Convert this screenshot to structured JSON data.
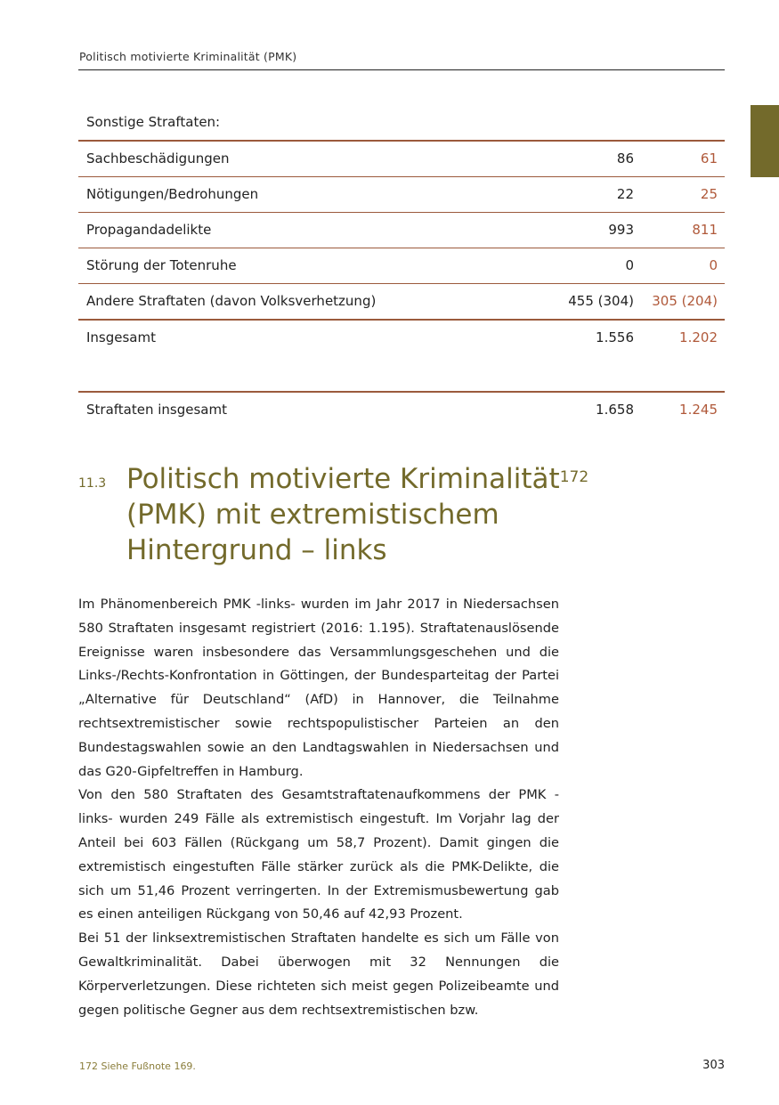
{
  "running_header": "Politisch motivierte Kriminalität (PMK)",
  "table": {
    "section_label": "Sonstige Straftaten:",
    "rows": [
      {
        "label": "Sachbeschädigungen",
        "v2016": "86",
        "v2017": "61"
      },
      {
        "label": "Nötigungen/Bedrohungen",
        "v2016": "22",
        "v2017": "25"
      },
      {
        "label": "Propagandadelikte",
        "v2016": "993",
        "v2017": "811"
      },
      {
        "label": "Störung der Totenruhe",
        "v2016": "0",
        "v2017": "0"
      },
      {
        "label": "Andere Straftaten (davon Volksverhetzung)",
        "v2016": "455 (304)",
        "v2017": "305 (204)"
      }
    ],
    "subtotal": {
      "label": "Insgesamt",
      "v2016": "1.556",
      "v2017": "1.202"
    },
    "total": {
      "label": "Straftaten insgesamt",
      "v2016": "1.658",
      "v2017": "1.245"
    }
  },
  "colors": {
    "accent_olive": "#736a2b",
    "accent_red": "#b0593a",
    "rule": "#9b5a3c"
  },
  "section": {
    "number": "11.3",
    "title": "Politisch motivierte Kriminalität",
    "footnote_ref": "172",
    "title_rest": "(PMK) mit extremistischem Hintergrund – links"
  },
  "paragraphs": [
    "Im Phänomenbereich PMK -links- wurden im Jahr 2017 in Niedersachsen 580 Straftaten insgesamt registriert (2016: 1.195). Straftatenauslösende Ereignisse waren insbesondere das Versammlungsgeschehen und die Links-/Rechts-Konfrontation in Göttingen, der Bundesparteitag der Partei „Alternative für Deutschland“ (AfD) in Hannover, die Teilnahme rechtsextremistischer sowie rechtspopulistischer Parteien an den Bundestagswahlen sowie an den Landtagswahlen in Niedersachsen und das G20-Gipfeltreffen in Hamburg.",
    "Von den 580 Straftaten des Gesamtstraftatenaufkommens der PMK -links- wurden 249 Fälle als extremistisch eingestuft. Im Vorjahr lag der Anteil bei 603 Fällen (Rückgang um 58,7 Prozent). Damit gingen die extremistisch eingestuften Fälle stärker zurück als die PMK-Delikte, die sich um 51,46 Prozent verringerten. In der Extremismusbewertung gab es einen anteiligen Rückgang von 50,46 auf 42,93 Prozent.",
    "Bei 51 der linksextremistischen Straftaten handelte es sich um Fälle von Gewaltkriminalität. Dabei überwogen mit 32 Nennungen die Körperverletzungen. Diese richteten sich meist gegen Polizeibeamte und gegen politische Gegner aus dem rechtsextremistischen bzw."
  ],
  "footnote": "172  Siehe Fußnote 169.",
  "page_number": "303"
}
